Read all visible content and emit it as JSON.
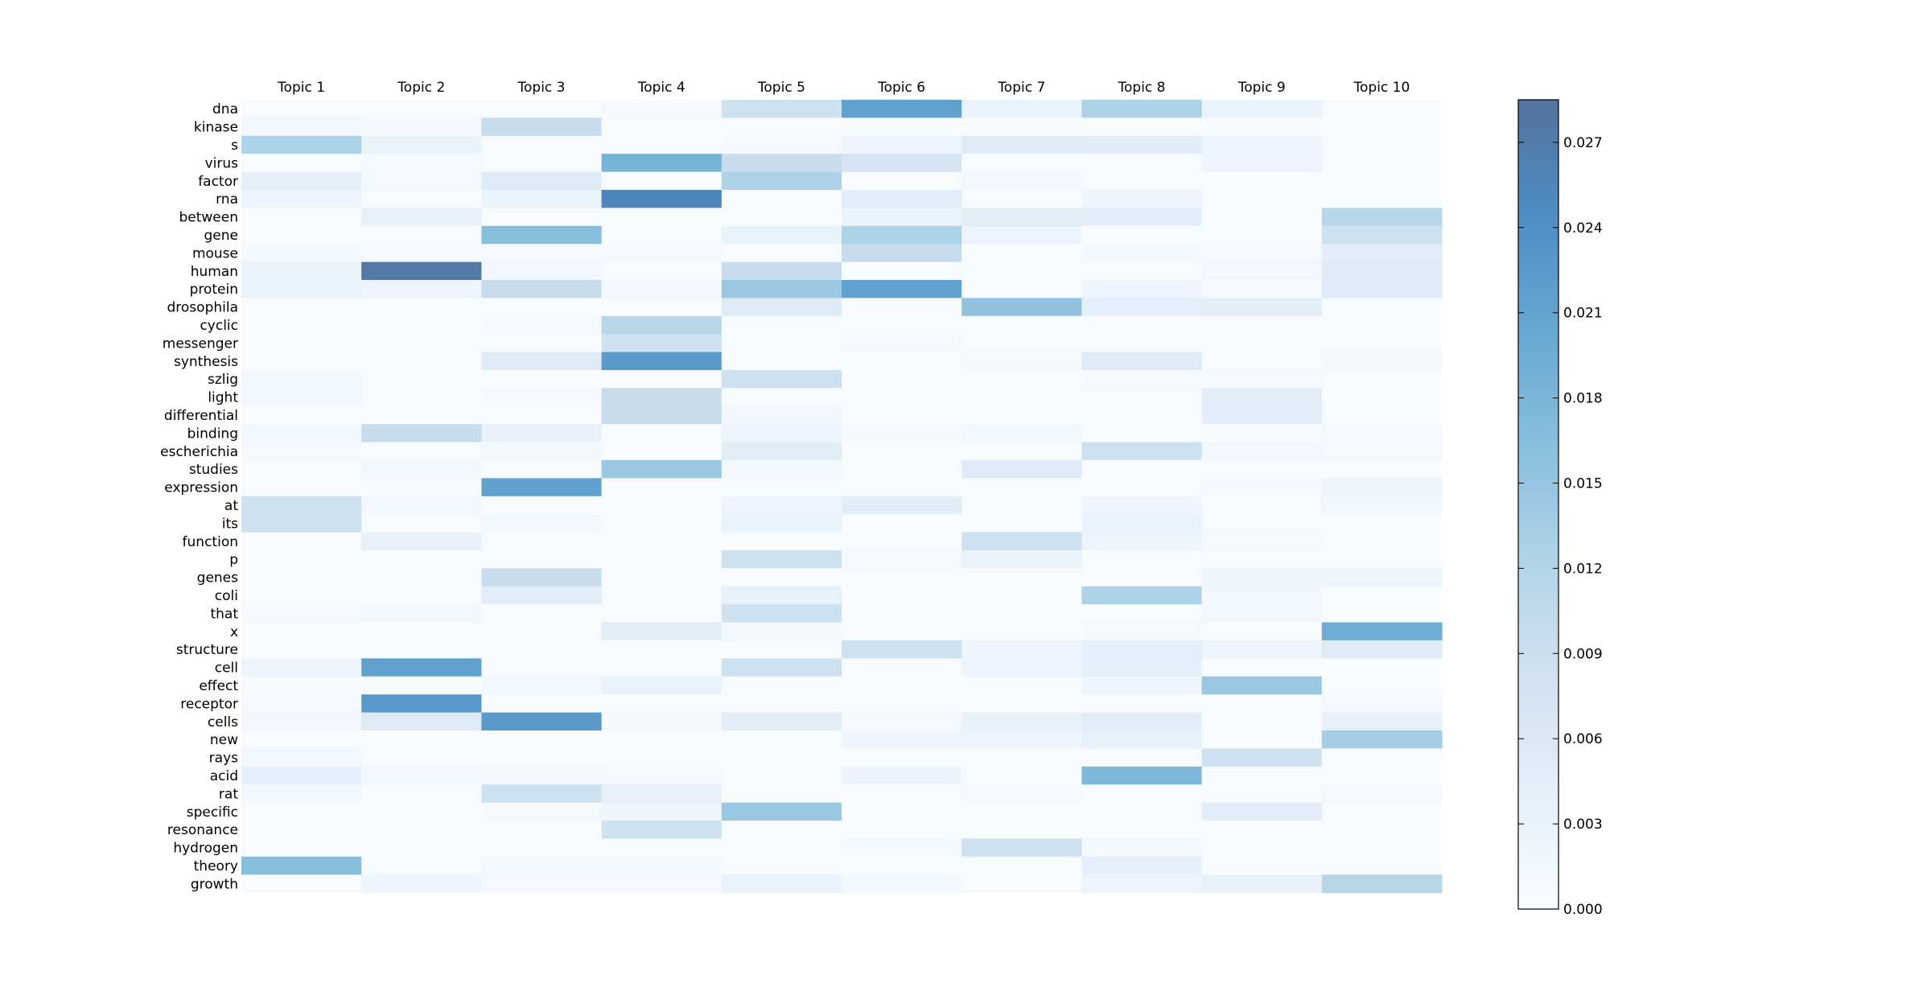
{
  "chart_data": {
    "type": "heatmap",
    "title": "",
    "xlabel": "",
    "ylabel": "",
    "columns": [
      "Topic 1",
      "Topic 2",
      "Topic 3",
      "Topic 4",
      "Topic 5",
      "Topic 6",
      "Topic 7",
      "Topic 8",
      "Topic 9",
      "Topic 10"
    ],
    "rows": [
      "dna",
      "kinase",
      "s",
      "virus",
      "factor",
      "rna",
      "between",
      "gene",
      "mouse",
      "human",
      "protein",
      "drosophila",
      "cyclic",
      "messenger",
      "synthesis",
      "szlig",
      "light",
      "differential",
      "binding",
      "escherichia",
      "studies",
      "expression",
      "at",
      "its",
      "function",
      "p",
      "genes",
      "coli",
      "that",
      "x",
      "structure",
      "cell",
      "effect",
      "receptor",
      "cells",
      "new",
      "rays",
      "acid",
      "rat",
      "specific",
      "resonance",
      "hydrogen",
      "theory",
      "growth"
    ],
    "values": [
      [
        0.0003,
        0.0003,
        0.0003,
        0.0008,
        0.0085,
        0.0215,
        0.003,
        0.0125,
        0.003,
        0.0003
      ],
      [
        0.0015,
        0.0008,
        0.0095,
        0.0003,
        0.0003,
        0.0003,
        0.0003,
        0.0003,
        0.0003,
        0.0003
      ],
      [
        0.0125,
        0.003,
        0.0003,
        0.0003,
        0.0008,
        0.0025,
        0.0055,
        0.0045,
        0.0025,
        0.0003
      ],
      [
        0.0003,
        0.0008,
        0.0003,
        0.0185,
        0.0095,
        0.0075,
        0.0003,
        0.0003,
        0.0025,
        0.0003
      ],
      [
        0.004,
        0.001,
        0.0055,
        0.0003,
        0.0125,
        0.0003,
        0.0015,
        0.0003,
        0.0003,
        0.0003
      ],
      [
        0.0025,
        0.0003,
        0.003,
        0.0255,
        0.0003,
        0.0045,
        0.0003,
        0.002,
        0.0003,
        0.0003
      ],
      [
        0.0003,
        0.0035,
        0.0003,
        0.0003,
        0.0003,
        0.003,
        0.0045,
        0.0045,
        0.0003,
        0.0115
      ],
      [
        0.0003,
        0.0003,
        0.0165,
        0.0003,
        0.003,
        0.0125,
        0.0025,
        0.0003,
        0.0003,
        0.0085
      ],
      [
        0.001,
        0.0008,
        0.0008,
        0.0008,
        0.0003,
        0.0095,
        0.0003,
        0.001,
        0.0008,
        0.0045
      ],
      [
        0.003,
        0.0275,
        0.0015,
        0.0003,
        0.0095,
        0.0003,
        0.0003,
        0.0003,
        0.0015,
        0.0055
      ],
      [
        0.003,
        0.002,
        0.0095,
        0.001,
        0.0145,
        0.0215,
        0.0003,
        0.0025,
        0.0008,
        0.0055
      ],
      [
        0.0003,
        0.0003,
        0.0003,
        0.0003,
        0.0055,
        0.0003,
        0.0155,
        0.004,
        0.0045,
        0.0003
      ],
      [
        0.0003,
        0.0003,
        0.0008,
        0.0115,
        0.0003,
        0.0003,
        0.0003,
        0.0003,
        0.0003,
        0.0003
      ],
      [
        0.0003,
        0.0003,
        0.0003,
        0.0085,
        0.0003,
        0.0008,
        0.0003,
        0.0003,
        0.0003,
        0.0003
      ],
      [
        0.0003,
        0.0003,
        0.0055,
        0.0225,
        0.0003,
        0.0003,
        0.001,
        0.0055,
        0.0003,
        0.0012
      ],
      [
        0.0015,
        0.0003,
        0.0003,
        0.0003,
        0.0085,
        0.0003,
        0.0003,
        0.0008,
        0.0008,
        0.0003
      ],
      [
        0.0015,
        0.0003,
        0.0008,
        0.0095,
        0.0003,
        0.0003,
        0.0003,
        0.0003,
        0.0045,
        0.0003
      ],
      [
        0.0003,
        0.0003,
        0.0003,
        0.0095,
        0.0015,
        0.0003,
        0.0003,
        0.0003,
        0.0045,
        0.0003
      ],
      [
        0.0012,
        0.0095,
        0.0035,
        0.0003,
        0.0025,
        0.0008,
        0.0015,
        0.0003,
        0.0003,
        0.0008
      ],
      [
        0.0008,
        0.0003,
        0.0012,
        0.0003,
        0.0045,
        0.0003,
        0.0003,
        0.0085,
        0.0015,
        0.0008
      ],
      [
        0.0003,
        0.0012,
        0.0003,
        0.0145,
        0.0012,
        0.0003,
        0.0055,
        0.0003,
        0.0003,
        0.0003
      ],
      [
        0.0003,
        0.0003,
        0.0215,
        0.0003,
        0.0003,
        0.0003,
        0.0003,
        0.0003,
        0.0008,
        0.0025
      ],
      [
        0.0085,
        0.0015,
        0.0003,
        0.0003,
        0.0025,
        0.0045,
        0.0003,
        0.002,
        0.0003,
        0.0015
      ],
      [
        0.0085,
        0.0003,
        0.0012,
        0.0003,
        0.003,
        0.0003,
        0.0003,
        0.003,
        0.0003,
        0.0003
      ],
      [
        0.0003,
        0.0035,
        0.0003,
        0.0003,
        0.0003,
        0.0003,
        0.0085,
        0.0025,
        0.0008,
        0.0003
      ],
      [
        0.0003,
        0.0003,
        0.0003,
        0.0003,
        0.0085,
        0.0008,
        0.003,
        0.0003,
        0.0003,
        0.0003
      ],
      [
        0.0003,
        0.0003,
        0.0095,
        0.0003,
        0.0003,
        0.0003,
        0.0003,
        0.0003,
        0.0025,
        0.0025
      ],
      [
        0.0003,
        0.0003,
        0.0045,
        0.0003,
        0.0035,
        0.0003,
        0.0003,
        0.0125,
        0.0015,
        0.0003
      ],
      [
        0.0008,
        0.0015,
        0.0003,
        0.0003,
        0.0085,
        0.0003,
        0.0003,
        0.0003,
        0.0015,
        0.0003
      ],
      [
        0.0003,
        0.0003,
        0.0003,
        0.0045,
        0.0012,
        0.0003,
        0.0003,
        0.0008,
        0.0003,
        0.0195
      ],
      [
        0.0003,
        0.0003,
        0.0003,
        0.0003,
        0.0003,
        0.0085,
        0.0025,
        0.004,
        0.0025,
        0.0055
      ],
      [
        0.0025,
        0.0215,
        0.0003,
        0.0003,
        0.0085,
        0.0003,
        0.0025,
        0.004,
        0.0003,
        0.0003
      ],
      [
        0.0003,
        0.0003,
        0.0015,
        0.003,
        0.0003,
        0.0003,
        0.0003,
        0.002,
        0.0145,
        0.0003
      ],
      [
        0.0008,
        0.0225,
        0.0003,
        0.0003,
        0.0003,
        0.0003,
        0.0003,
        0.0003,
        0.0003,
        0.0008
      ],
      [
        0.0015,
        0.0055,
        0.0225,
        0.001,
        0.0045,
        0.0008,
        0.0035,
        0.0045,
        0.0003,
        0.0035
      ],
      [
        0.0003,
        0.0003,
        0.0003,
        0.0003,
        0.0003,
        0.002,
        0.0025,
        0.0035,
        0.0003,
        0.0135
      ],
      [
        0.0015,
        0.0003,
        0.0003,
        0.0003,
        0.0003,
        0.0003,
        0.0003,
        0.0003,
        0.0085,
        0.0003
      ],
      [
        0.004,
        0.0015,
        0.0012,
        0.0008,
        0.0003,
        0.0025,
        0.0003,
        0.0175,
        0.0003,
        0.0003
      ],
      [
        0.0012,
        0.0003,
        0.0085,
        0.0035,
        0.0003,
        0.0003,
        0.0008,
        0.0003,
        0.0003,
        0.0008
      ],
      [
        0.0003,
        0.0003,
        0.0008,
        0.002,
        0.0145,
        0.0003,
        0.0003,
        0.0003,
        0.0045,
        0.0003
      ],
      [
        0.0003,
        0.0003,
        0.0003,
        0.0085,
        0.0003,
        0.0003,
        0.0003,
        0.0003,
        0.0003,
        0.0003
      ],
      [
        0.0003,
        0.0003,
        0.0003,
        0.0003,
        0.0003,
        0.001,
        0.0085,
        0.001,
        0.0003,
        0.0003
      ],
      [
        0.0165,
        0.0003,
        0.0012,
        0.0012,
        0.0003,
        0.0003,
        0.0003,
        0.004,
        0.0003,
        0.0003
      ],
      [
        0.0003,
        0.0025,
        0.0008,
        0.0008,
        0.003,
        0.0012,
        0.0003,
        0.0025,
        0.0035,
        0.0115
      ]
    ],
    "colorbar": {
      "min": 0.0,
      "max": 0.0285,
      "ticks": [
        0.0,
        0.003,
        0.006,
        0.009,
        0.012,
        0.015,
        0.018,
        0.021,
        0.024,
        0.027
      ],
      "tick_labels": [
        "0.000",
        "0.003",
        "0.006",
        "0.009",
        "0.012",
        "0.015",
        "0.018",
        "0.021",
        "0.024",
        "0.027"
      ],
      "colormap": "Blues",
      "colors": [
        "#f7fbff",
        "#deebf7",
        "#c6dbef",
        "#9ecae1",
        "#6baed6",
        "#4292c6",
        "#2171b5",
        "#2a4f84"
      ],
      "alpha": 0.8
    }
  }
}
